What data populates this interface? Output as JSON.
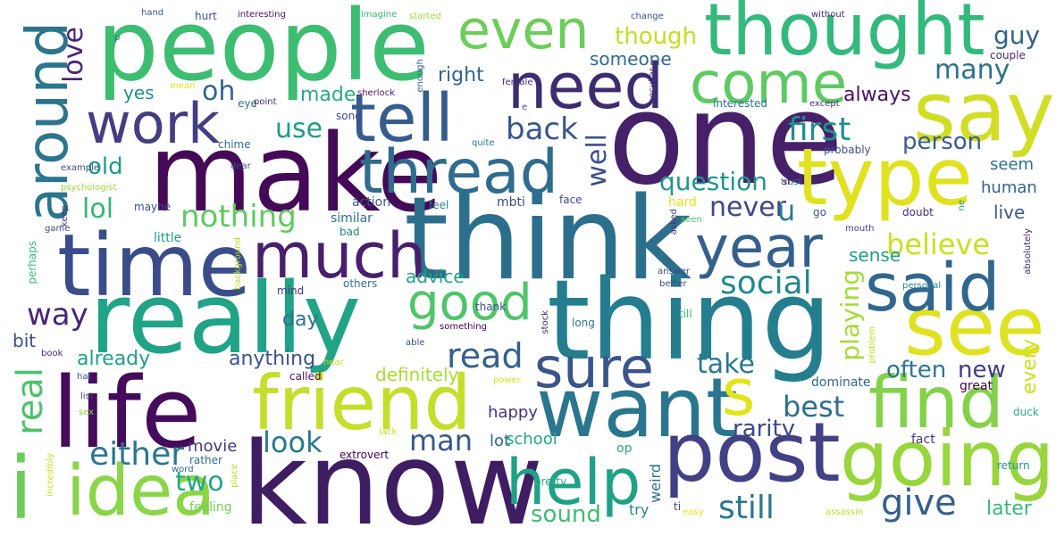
{
  "words": [
    {
      "t": "people",
      "c": "#3dbd72"
    },
    {
      "t": "make",
      "c": "#440a57"
    },
    {
      "t": "think",
      "c": "#2c6f8d"
    },
    {
      "t": "one",
      "c": "#46216a"
    },
    {
      "t": "thing",
      "c": "#247e8e"
    },
    {
      "t": "really",
      "c": "#20a386"
    },
    {
      "t": "know",
      "c": "#3e1d63"
    },
    {
      "t": "life",
      "c": "#450c5b"
    },
    {
      "t": "time",
      "c": "#3a4d8a"
    },
    {
      "t": "thought",
      "c": "#33b97c"
    },
    {
      "t": "type",
      "c": "#e0e21e"
    },
    {
      "t": "say",
      "c": "#d2dd26"
    },
    {
      "t": "see",
      "c": "#dfe222"
    },
    {
      "t": "want",
      "c": "#2a768e"
    },
    {
      "t": "post",
      "c": "#424186"
    },
    {
      "t": "going",
      "c": "#98d63c"
    },
    {
      "t": "friend",
      "c": "#c4df2b"
    },
    {
      "t": "find",
      "c": "#83d24a"
    },
    {
      "t": "idea",
      "c": "#8ad548"
    },
    {
      "t": "thread",
      "c": "#2f6c8e"
    },
    {
      "t": "need",
      "c": "#3d2c70"
    },
    {
      "t": "tell",
      "c": "#365c8d"
    },
    {
      "t": "work",
      "c": "#433d81"
    },
    {
      "t": "much",
      "c": "#491f6d"
    },
    {
      "t": "said",
      "c": "#31678e"
    },
    {
      "t": "sure",
      "c": "#3a548c"
    },
    {
      "t": "help",
      "c": "#1fa186"
    },
    {
      "t": "even",
      "c": "#6dcd59"
    },
    {
      "t": "come",
      "c": "#5ec962"
    },
    {
      "t": "around",
      "c": "#2c758e"
    },
    {
      "t": "year",
      "c": "#34608d"
    },
    {
      "t": "good",
      "c": "#4fc56a"
    },
    {
      "t": "s",
      "c": "#e2e418"
    },
    {
      "t": "i",
      "c": "#6ccd5a"
    },
    {
      "t": "nothing",
      "c": "#60c960"
    },
    {
      "t": "believe",
      "c": "#c9e020"
    },
    {
      "t": "social",
      "c": "#23888e"
    },
    {
      "t": "read",
      "c": "#34618d"
    },
    {
      "t": "take",
      "c": "#29798e"
    },
    {
      "t": "best",
      "c": "#2e6f8e"
    },
    {
      "t": "look",
      "c": "#297b8e"
    },
    {
      "t": "man",
      "c": "#38588c"
    },
    {
      "t": "give",
      "c": "#35608d"
    },
    {
      "t": "still",
      "c": "#29788e"
    },
    {
      "t": "either",
      "c": "#2a778e"
    },
    {
      "t": "two",
      "c": "#22a884"
    },
    {
      "t": "first",
      "c": "#208f8c"
    },
    {
      "t": "question",
      "c": "#1f968b"
    },
    {
      "t": "never",
      "c": "#3f4889"
    },
    {
      "t": "u",
      "c": "#287d8e"
    },
    {
      "t": "back",
      "c": "#39568c"
    },
    {
      "t": "many",
      "c": "#2c728e"
    },
    {
      "t": "lol",
      "c": "#34b679"
    },
    {
      "t": "old",
      "c": "#1f9a8a"
    },
    {
      "t": "use",
      "c": "#1e9c89"
    },
    {
      "t": "way",
      "c": "#482677"
    },
    {
      "t": "oh",
      "c": "#33638d"
    },
    {
      "t": "love",
      "c": "#482475"
    },
    {
      "t": "well",
      "c": "#3c4f8a"
    },
    {
      "t": "real",
      "c": "#4cc26c"
    },
    {
      "t": "playing",
      "c": "#a5db36"
    },
    {
      "t": "person",
      "c": "#365d8d"
    },
    {
      "t": "rarity",
      "c": "#3f4788"
    },
    {
      "t": "often",
      "c": "#2a778e"
    },
    {
      "t": "new",
      "c": "#443b84"
    },
    {
      "t": "every",
      "c": "#cde11d"
    },
    {
      "t": "sound",
      "c": "#3dbc74"
    },
    {
      "t": "later",
      "c": "#38b977"
    },
    {
      "t": "guy",
      "c": "#33628d"
    },
    {
      "t": "though",
      "c": "#c2df23"
    },
    {
      "t": "someone",
      "c": "#30698e"
    },
    {
      "t": "right",
      "c": "#33638d"
    },
    {
      "t": "always",
      "c": "#471365"
    },
    {
      "t": "made",
      "c": "#25ac82"
    },
    {
      "t": "yes",
      "c": "#20928c"
    },
    {
      "t": "human",
      "c": "#33638d"
    },
    {
      "t": "live",
      "c": "#38598c"
    },
    {
      "t": "sense",
      "c": "#1f9e89"
    },
    {
      "t": "seem",
      "c": "#2c718e"
    },
    {
      "t": "advice",
      "c": "#20a386"
    },
    {
      "t": "day",
      "c": "#2d718e"
    },
    {
      "t": "already",
      "c": "#1f9f88"
    },
    {
      "t": "anything",
      "c": "#3b528b"
    },
    {
      "t": "definitely",
      "c": "#aadc32"
    },
    {
      "t": "bit",
      "c": "#3d4e8a"
    },
    {
      "t": "happy",
      "c": "#46337f"
    },
    {
      "t": "lot",
      "c": "#31678e"
    },
    {
      "t": "school",
      "c": "#22a785"
    },
    {
      "t": "movie",
      "c": "#453781"
    },
    {
      "t": "rather",
      "c": "#2d708e"
    },
    {
      "t": "try",
      "c": "#24878e"
    },
    {
      "t": "weird",
      "c": "#2d708e"
    },
    {
      "t": "op",
      "c": "#25ab82"
    },
    {
      "t": "pretty",
      "c": "#27ad81"
    },
    {
      "t": "fact",
      "c": "#453781"
    },
    {
      "t": "great",
      "c": "#440154"
    },
    {
      "t": "dominate",
      "c": "#33638d"
    },
    {
      "t": "extrovert",
      "c": "#440154"
    },
    {
      "t": "called",
      "c": "#471063"
    },
    {
      "t": "feeling",
      "c": "#75d054"
    },
    {
      "t": "others",
      "c": "#2c738e"
    },
    {
      "t": "thank",
      "c": "#3b528b"
    },
    {
      "t": "hard",
      "c": "#e5e419"
    },
    {
      "t": "mbti",
      "c": "#3e4989"
    },
    {
      "t": "face",
      "c": "#3e4a89"
    },
    {
      "t": "feel",
      "c": "#26828e"
    },
    {
      "t": "action",
      "c": "#38588c"
    },
    {
      "t": "similar",
      "c": "#2e6e8e"
    },
    {
      "t": "little",
      "c": "#1f9e89"
    },
    {
      "t": "maybe",
      "c": "#3e4989"
    },
    {
      "t": "game",
      "c": "#3a538b"
    },
    {
      "t": "bad",
      "c": "#25848e"
    },
    {
      "t": "mind",
      "c": "#46327e"
    },
    {
      "t": "background",
      "c": "#b5de2b"
    },
    {
      "t": "perhaps",
      "c": "#3aba76"
    },
    {
      "t": "book",
      "c": "#482979"
    },
    {
      "t": "hat",
      "c": "#3b528b"
    },
    {
      "t": "list",
      "c": "#414487"
    },
    {
      "t": "sex",
      "c": "#8bd646"
    },
    {
      "t": "hear",
      "c": "#c8e020"
    },
    {
      "t": "power",
      "c": "#d8e219"
    },
    {
      "t": "incredibly",
      "c": "#d0e11c"
    },
    {
      "t": "word",
      "c": "#31688e"
    },
    {
      "t": "place",
      "c": "#bddf26"
    },
    {
      "t": "lack",
      "c": "#c5e021"
    },
    {
      "t": "ti",
      "c": "#404688"
    },
    {
      "t": "easy",
      "c": "#e2e418"
    },
    {
      "t": "assassin",
      "c": "#c2df23"
    },
    {
      "t": "return",
      "c": "#20928c"
    },
    {
      "t": "duck",
      "c": "#25ac82"
    },
    {
      "t": "problem",
      "c": "#c5e021"
    },
    {
      "t": "till",
      "c": "#35b779"
    },
    {
      "t": "long",
      "c": "#2c728e"
    },
    {
      "t": "stock",
      "c": "#482173"
    },
    {
      "t": "something",
      "c": "#440154"
    },
    {
      "t": "able",
      "c": "#3b528b"
    },
    {
      "t": "answer",
      "c": "#3e4989"
    },
    {
      "t": "better",
      "c": "#3e4989"
    },
    {
      "t": "personal",
      "c": "#277f8e"
    },
    {
      "t": "absolutely",
      "c": "#482475"
    },
    {
      "t": "mouth",
      "c": "#404688"
    },
    {
      "t": "seen",
      "c": "#52c569"
    },
    {
      "t": "asked",
      "c": "#453882"
    },
    {
      "t": "go",
      "c": "#3b528b"
    },
    {
      "t": "doubt",
      "c": "#472d7b"
    },
    {
      "t": "ne",
      "c": "#1fa088"
    },
    {
      "t": "trust",
      "c": "#2c738e"
    },
    {
      "t": "si",
      "c": "#440154"
    },
    {
      "t": "probably",
      "c": "#3b528b"
    },
    {
      "t": "except",
      "c": "#46337f"
    },
    {
      "t": "interested",
      "c": "#2c728e"
    },
    {
      "t": "quite",
      "c": "#2a768e"
    },
    {
      "t": "chime",
      "c": "#2e6d8e"
    },
    {
      "t": "dear",
      "c": "#3b528b"
    },
    {
      "t": "eye",
      "c": "#2d708e"
    },
    {
      "t": "point",
      "c": "#472a7a"
    },
    {
      "t": "sherlock",
      "c": "#481467"
    },
    {
      "t": "song",
      "c": "#3f4889"
    },
    {
      "t": "e",
      "c": "#3b528b"
    },
    {
      "t": "female",
      "c": "#482878"
    },
    {
      "t": "peculiar",
      "c": "#46327e"
    },
    {
      "t": "couple",
      "c": "#472c7a"
    },
    {
      "t": "mean",
      "c": "#dfe318"
    },
    {
      "t": "p",
      "c": "#2c728e"
    },
    {
      "t": "psychologist",
      "c": "#a0da39"
    },
    {
      "t": "example",
      "c": "#3e4c8a"
    },
    {
      "t": "keep",
      "c": "#453781"
    },
    {
      "t": "hand",
      "c": "#3b528b"
    },
    {
      "t": "hurt",
      "c": "#3c4f8a"
    },
    {
      "t": "interesting",
      "c": "#471164"
    },
    {
      "t": "imagine",
      "c": "#35b779"
    },
    {
      "t": "started",
      "c": "#a8db34"
    },
    {
      "t": "change",
      "c": "#3c4f8a"
    },
    {
      "t": "without",
      "c": "#482878"
    },
    {
      "t": "enough",
      "c": "#33638d"
    }
  ]
}
